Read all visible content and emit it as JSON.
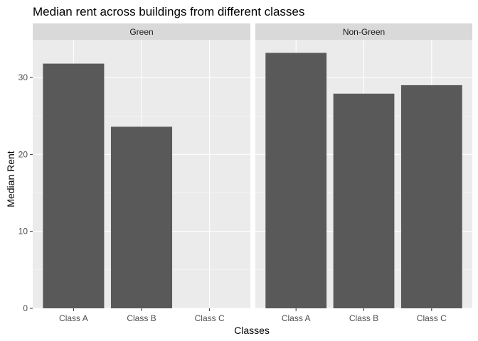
{
  "chart_data": {
    "type": "bar",
    "title": "Median rent across buildings from different classes",
    "xlabel": "Classes",
    "ylabel": "Median Rent",
    "categories": [
      "Class A",
      "Class B",
      "Class C"
    ],
    "ylim": [
      0,
      34.9
    ],
    "yticks": [
      0,
      10,
      20,
      30
    ],
    "grid": true,
    "bar_color": "#595959",
    "panel_color": "#ebebeb",
    "strip_color": "#d9d9d9",
    "facets": [
      {
        "label": "Green",
        "values": [
          31.8,
          23.6,
          null
        ]
      },
      {
        "label": "Non-Green",
        "values": [
          33.2,
          27.9,
          29.0
        ]
      }
    ]
  }
}
